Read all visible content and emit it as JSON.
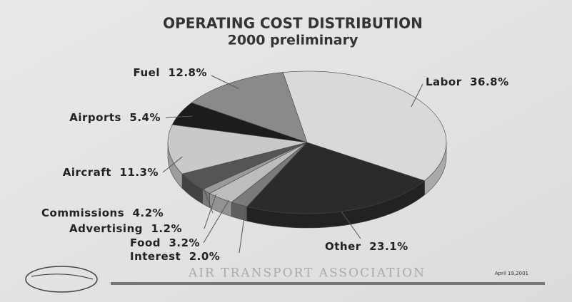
{
  "chart_data": {
    "type": "pie",
    "title": "OPERATING COST DISTRIBUTION",
    "subtitle": "2000 preliminary",
    "categories": [
      "Labor",
      "Other",
      "Interest",
      "Food",
      "Advertising",
      "Commissions",
      "Aircraft",
      "Airports",
      "Fuel"
    ],
    "values": [
      36.8,
      23.1,
      2.0,
      3.2,
      1.2,
      4.2,
      11.3,
      5.4,
      12.8
    ],
    "value_labels": [
      "36.8%",
      "23.1%",
      "2.0%",
      "3.2%",
      "1.2%",
      "4.2%",
      "11.3%",
      "5.4%",
      "12.8%"
    ],
    "colors": [
      "#d9d9d9",
      "#2b2b2b",
      "#7a7a7a",
      "#bdbdbd",
      "#9a9a9a",
      "#555555",
      "#c9c9c9",
      "#1c1c1c",
      "#8a8a8a"
    ],
    "source": "Air Transport Association",
    "date": "April 19,2001"
  }
}
